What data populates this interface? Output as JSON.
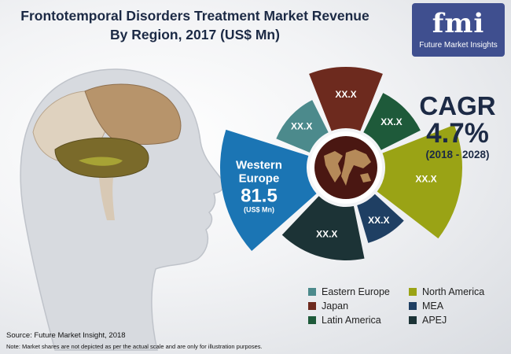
{
  "title": {
    "line1": "Frontotemporal Disorders Treatment Market Revenue",
    "line2": "By Region, 2017 (US$ Mn)"
  },
  "logo": {
    "mark": "fmi",
    "name": "Future Market Insights"
  },
  "cagr": {
    "label": "CAGR",
    "value": "4.7%",
    "period": "(2018 - 2028)"
  },
  "chart_data": {
    "type": "pie",
    "title": "Frontotemporal Disorders Treatment Market Revenue By Region, 2017 (US$ Mn)",
    "slices": [
      {
        "name": "Eastern Europe",
        "label": "XX.X",
        "color": "#4c8a8c"
      },
      {
        "name": "Japan",
        "label": "XX.X",
        "color": "#6d2a1e"
      },
      {
        "name": "Latin America",
        "label": "XX.X",
        "color": "#1e5a3a"
      },
      {
        "name": "North America",
        "label": "XX.X",
        "color": "#9aa315"
      },
      {
        "name": "MEA",
        "label": "XX.X",
        "color": "#1f3f63"
      },
      {
        "name": "APEJ",
        "label": "XX.X",
        "color": "#1c3336"
      },
      {
        "name": "Western Europe",
        "label": "81.5",
        "unit": "(US$ Mn)",
        "color": "#1b75b4",
        "highlight": true
      }
    ]
  },
  "legend": [
    {
      "label": "Eastern Europe",
      "color": "#4c8a8c"
    },
    {
      "label": "North America",
      "color": "#9aa315"
    },
    {
      "label": "Japan",
      "color": "#6d2a1e"
    },
    {
      "label": "MEA",
      "color": "#1f3f63"
    },
    {
      "label": "Latin America",
      "color": "#1e5a3a"
    },
    {
      "label": "APEJ",
      "color": "#1c3336"
    }
  ],
  "footer": {
    "source": "Source: Future Market Insight, 2018",
    "note": "Note: Market shares are not depicted as per the actual scale and are only for illustration purposes."
  }
}
